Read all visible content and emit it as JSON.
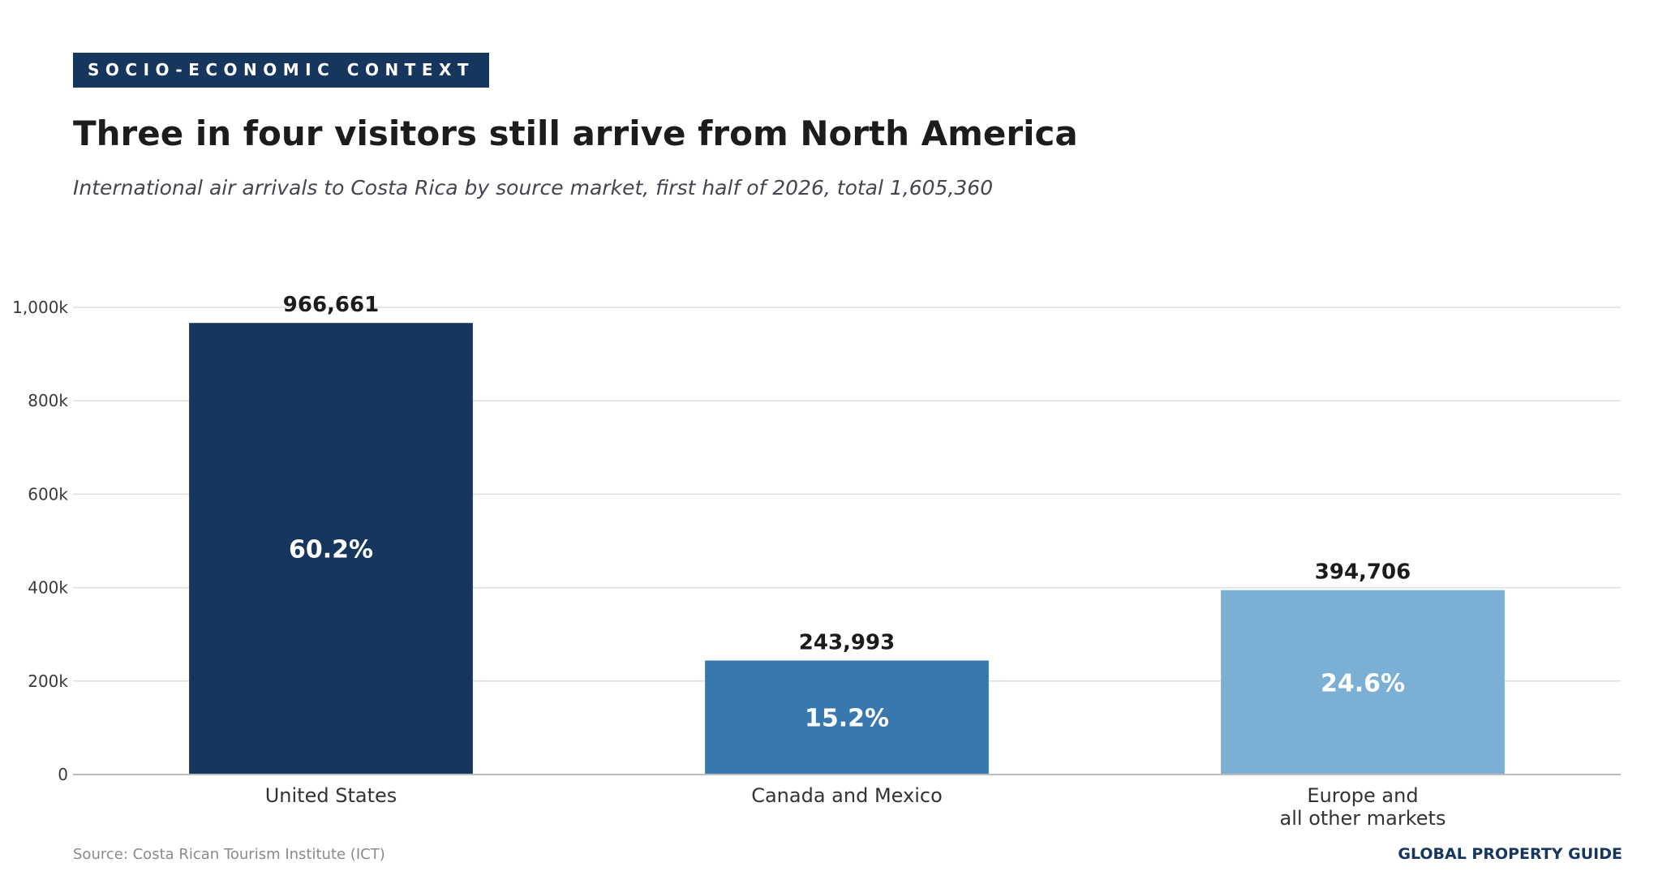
{
  "header": {
    "kicker": "SOCIO-ECONOMIC CONTEXT",
    "title": "Three in four visitors still arrive from North America",
    "subtitle": "International air arrivals to Costa Rica by source market, first half of 2026, total 1,605,360"
  },
  "footer": {
    "source": "Source: Costa Rican Tourism Institute (ICT)",
    "brand": "GLOBAL PROPERTY GUIDE"
  },
  "chart_data": {
    "type": "bar",
    "categories": [
      [
        "United States"
      ],
      [
        "Canada and Mexico"
      ],
      [
        "Europe and",
        "all other markets"
      ]
    ],
    "values": [
      966661,
      243993,
      394706
    ],
    "value_labels": [
      "966,661",
      "243,993",
      "394,706"
    ],
    "share_labels": [
      "60.2%",
      "15.2%",
      "24.6%"
    ],
    "colors": [
      "#17365d",
      "#3878ae",
      "#7bafd4"
    ],
    "ylim": [
      0,
      1000000
    ],
    "yticks": [
      0,
      200000,
      400000,
      600000,
      800000,
      1000000
    ],
    "ytick_labels": [
      "0",
      "200k",
      "400k",
      "600k",
      "800k",
      "1,000k"
    ],
    "grid": true,
    "legend": "none",
    "xlabel": "",
    "ylabel": ""
  }
}
